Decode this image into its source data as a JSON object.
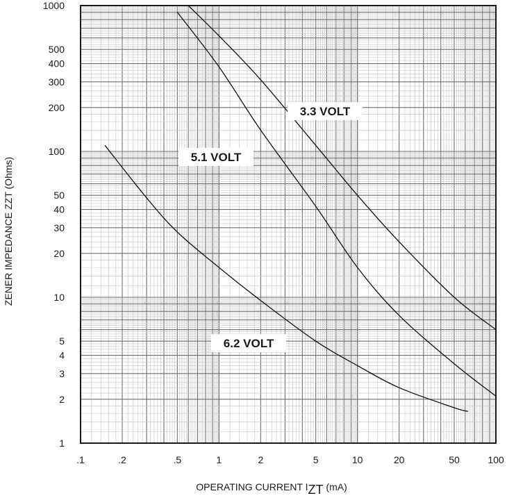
{
  "chart_data": {
    "type": "line",
    "title": "",
    "xscale": "log",
    "yscale": "log",
    "xlim": [
      0.1,
      100
    ],
    "ylim": [
      1,
      1000
    ],
    "grid": true,
    "xlabel_main": "OPERATING CURRENT I",
    "xlabel_sub": "ZT",
    "xlabel_unit": " (mA)",
    "ylabel": "ZENER IMPEDANCE ZZT (Ohms)",
    "x_ticks": [
      {
        "v": 0.1,
        "label": ".1"
      },
      {
        "v": 0.2,
        "label": ".2"
      },
      {
        "v": 0.5,
        "label": ".5"
      },
      {
        "v": 1,
        "label": "1"
      },
      {
        "v": 2,
        "label": "2"
      },
      {
        "v": 5,
        "label": "5"
      },
      {
        "v": 10,
        "label": "10"
      },
      {
        "v": 20,
        "label": "20"
      },
      {
        "v": 50,
        "label": "50"
      },
      {
        "v": 100,
        "label": "100"
      }
    ],
    "y_ticks": [
      {
        "v": 1,
        "label": "1"
      },
      {
        "v": 2,
        "label": "2"
      },
      {
        "v": 3,
        "label": "3"
      },
      {
        "v": 4,
        "label": "4"
      },
      {
        "v": 5,
        "label": "5"
      },
      {
        "v": 10,
        "label": "10"
      },
      {
        "v": 20,
        "label": "20"
      },
      {
        "v": 30,
        "label": "30"
      },
      {
        "v": 40,
        "label": "40"
      },
      {
        "v": 50,
        "label": "50"
      },
      {
        "v": 100,
        "label": "100"
      },
      {
        "v": 200,
        "label": "200"
      },
      {
        "v": 300,
        "label": "300"
      },
      {
        "v": 400,
        "label": "400"
      },
      {
        "v": 500,
        "label": "500"
      },
      {
        "v": 1000,
        "label": "1000"
      }
    ],
    "series": [
      {
        "name": "3.3 VOLT",
        "x": [
          0.6,
          1,
          2,
          5,
          10,
          20,
          50,
          100
        ],
        "y": [
          1000,
          620,
          310,
          110,
          50,
          24,
          10,
          6
        ]
      },
      {
        "name": "5.1 VOLT",
        "x": [
          0.5,
          1,
          2,
          5,
          10,
          20,
          50,
          100
        ],
        "y": [
          900,
          380,
          140,
          42,
          16,
          7.5,
          3.5,
          2.1
        ]
      },
      {
        "name": "6.2 VOLT",
        "x": [
          0.15,
          0.3,
          0.5,
          1,
          2,
          5,
          10,
          20,
          50,
          63
        ],
        "y": [
          110,
          48,
          28,
          16,
          9.5,
          5,
          3.4,
          2.4,
          1.75,
          1.65
        ]
      }
    ]
  }
}
